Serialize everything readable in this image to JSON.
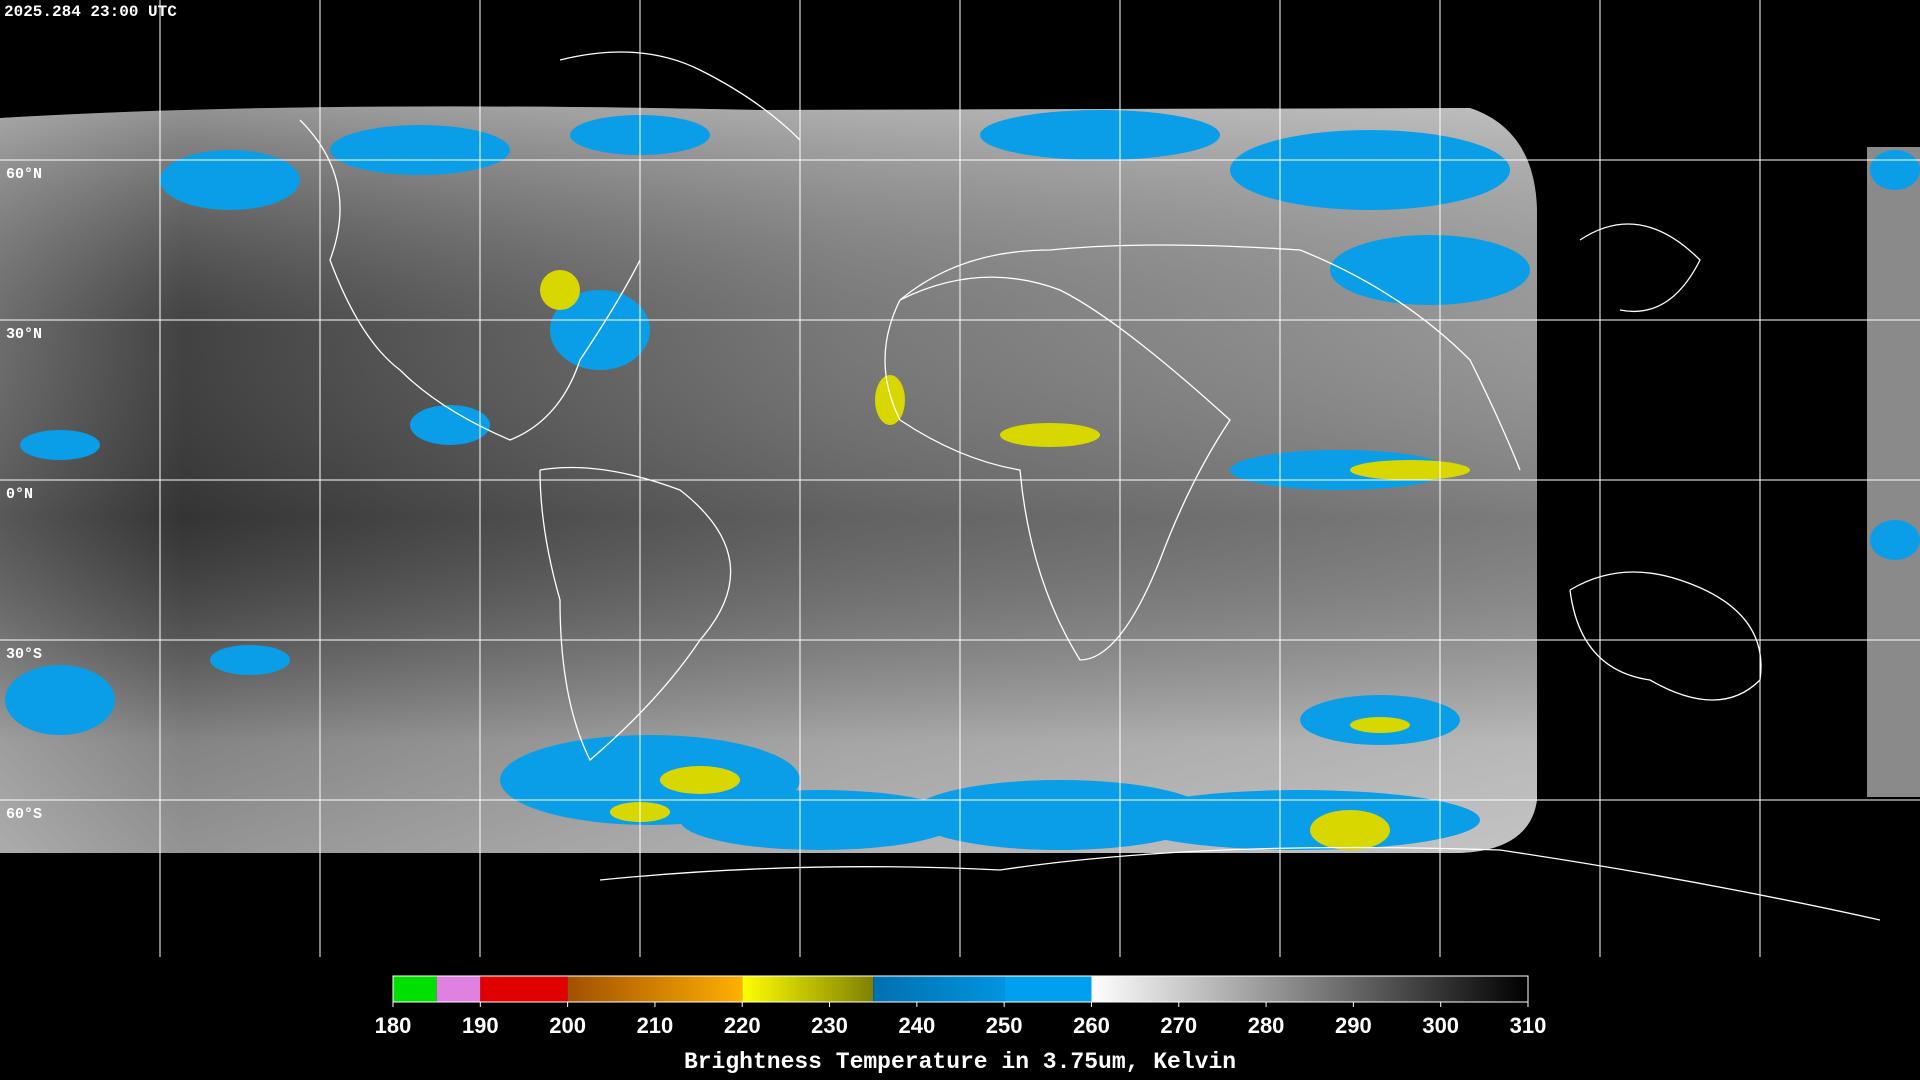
{
  "timestamp": "2025.284 23:00 UTC",
  "latitude_labels": [
    "60°N",
    "30°N",
    "0°N",
    "30°S",
    "60°S"
  ],
  "colorbar": {
    "title": "Brightness Temperature in 3.75um, Kelvin",
    "range": [
      180,
      310
    ],
    "ticks": [
      180,
      190,
      200,
      210,
      220,
      230,
      240,
      250,
      260,
      270,
      280,
      290,
      300,
      310
    ],
    "stops": [
      {
        "from": 180,
        "to": 185,
        "colors": [
          "#00e000",
          "#00e000"
        ]
      },
      {
        "from": 185,
        "to": 190,
        "colors": [
          "#e080e0",
          "#e080e0"
        ]
      },
      {
        "from": 190,
        "to": 200,
        "colors": [
          "#e00000",
          "#e00000"
        ]
      },
      {
        "from": 200,
        "to": 220,
        "colors": [
          "#a05000",
          "#ffb000"
        ]
      },
      {
        "from": 220,
        "to": 235,
        "colors": [
          "#ffff00",
          "#808000"
        ]
      },
      {
        "from": 235,
        "to": 250,
        "colors": [
          "#0070b0",
          "#0094e0"
        ]
      },
      {
        "from": 250,
        "to": 260,
        "colors": [
          "#00a0f0",
          "#00a0f0"
        ]
      },
      {
        "from": 260,
        "to": 310,
        "colors": [
          "#ffffff",
          "#000000"
        ]
      }
    ]
  }
}
